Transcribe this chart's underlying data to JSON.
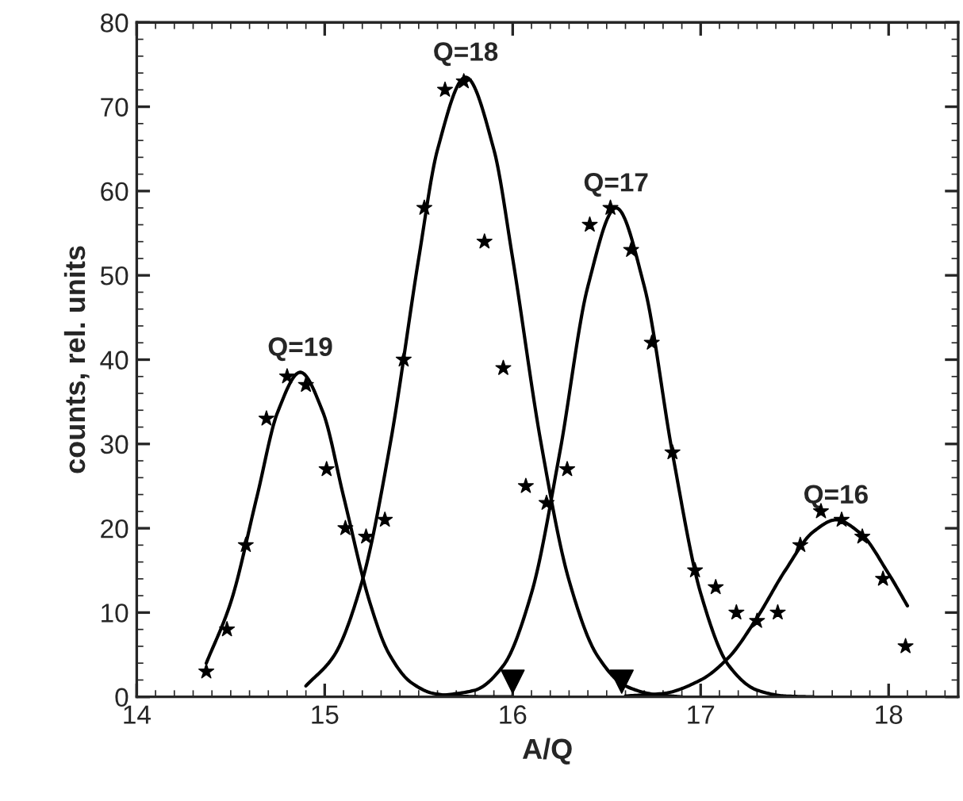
{
  "chart_data": {
    "type": "scatter",
    "xlabel": "A/Q",
    "ylabel": "counts, rel. units",
    "xlim": [
      14,
      18.37
    ],
    "xticks": [
      14,
      15,
      16,
      17,
      18
    ],
    "ylim": [
      0,
      80
    ],
    "yticks": [
      0,
      10,
      20,
      30,
      40,
      50,
      60,
      70,
      80
    ],
    "grid": false,
    "series": [
      {
        "marker": "star",
        "color": "#000000",
        "x": [
          14.37,
          14.48,
          14.58,
          14.69,
          14.8,
          14.9,
          15.01,
          15.11,
          15.22,
          15.32,
          15.42,
          15.53,
          15.64,
          15.74,
          15.85,
          15.95,
          16.07,
          16.18,
          16.29,
          16.41,
          16.52,
          16.63,
          16.74,
          16.85,
          16.97,
          17.08,
          17.19,
          17.3,
          17.41,
          17.53,
          17.64,
          17.75,
          17.86,
          17.97,
          18.09
        ],
        "values": [
          3,
          8,
          18,
          33,
          38,
          37,
          27,
          20,
          19,
          21,
          40,
          58,
          72,
          73,
          54,
          39,
          25,
          23,
          27,
          56,
          58,
          53,
          42,
          29,
          15,
          13,
          10,
          9,
          10,
          18,
          22,
          21,
          19,
          14,
          6
        ]
      },
      {
        "type": "line",
        "color": "#000000",
        "x": [
          14.37,
          14.5,
          14.64,
          14.75,
          14.87,
          14.99,
          15.1,
          15.24,
          15.34,
          15.46,
          15.58,
          15.7,
          15.9,
          16.0
        ],
        "values": [
          4.0,
          11.2,
          23.8,
          33.8,
          38.5,
          33.8,
          23.8,
          11.2,
          5.2,
          1.7,
          0.4,
          0.1,
          0,
          0
        ]
      },
      {
        "type": "line",
        "color": "#000000",
        "x": [
          14.9,
          15.05,
          15.2,
          15.35,
          15.5,
          15.6,
          15.75,
          15.9,
          16.0,
          16.15,
          16.3,
          16.45,
          16.6,
          16.75,
          16.9
        ],
        "values": [
          1.3,
          4.9,
          13.8,
          30.2,
          52.0,
          64.9,
          73.5,
          64.9,
          52.0,
          30.2,
          13.8,
          4.9,
          1.3,
          0.3,
          0
        ]
      },
      {
        "type": "line",
        "color": "#000000",
        "x": [
          15.6,
          15.8,
          15.95,
          16.1,
          16.25,
          16.4,
          16.55,
          16.7,
          16.85,
          17.0,
          17.15,
          17.3,
          17.45,
          17.6
        ],
        "values": [
          0.1,
          0.8,
          3.7,
          12.3,
          28.9,
          48.7,
          58,
          48.7,
          28.9,
          12.3,
          3.7,
          0.8,
          0.1,
          0
        ]
      },
      {
        "type": "line",
        "color": "#000000",
        "x": [
          16.6,
          16.8,
          17.0,
          17.15,
          17.3,
          17.45,
          17.6,
          17.72,
          17.85,
          18.0,
          18.1
        ],
        "values": [
          0.1,
          0.4,
          2.0,
          4.7,
          9.4,
          15.0,
          19.6,
          21,
          19.4,
          14.6,
          10.8
        ]
      },
      {
        "marker": "triangle",
        "color": "#000000",
        "x": [
          16.0,
          16.58
        ],
        "values": [
          1.8,
          1.8
        ]
      }
    ],
    "annotations": [
      {
        "text": "Q=19",
        "x": 14.87,
        "y": 38.5
      },
      {
        "text": "Q=18",
        "x": 15.75,
        "y": 73.5
      },
      {
        "text": "Q=17",
        "x": 16.55,
        "y": 58
      },
      {
        "text": "Q=16",
        "x": 17.72,
        "y": 21
      }
    ]
  }
}
